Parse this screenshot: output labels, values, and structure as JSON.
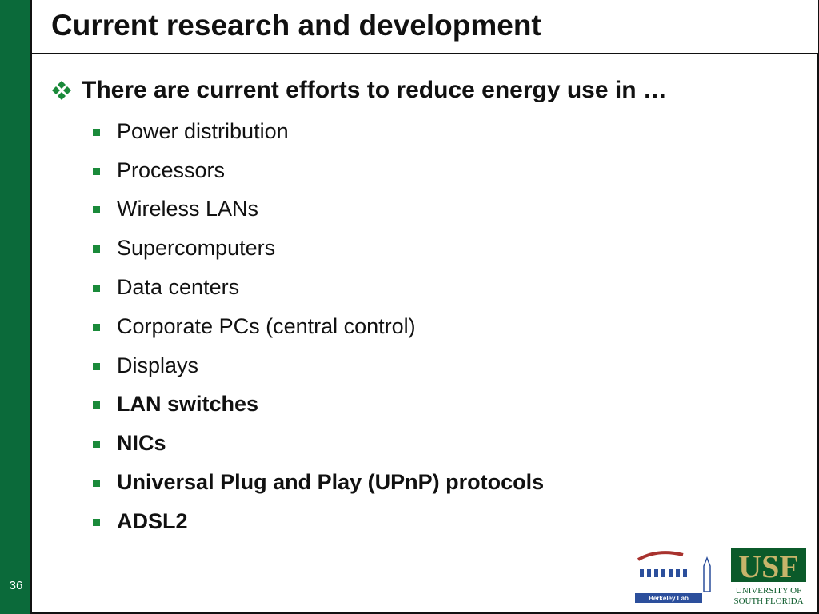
{
  "slide": {
    "title": "Current research and development",
    "number": "36"
  },
  "content": {
    "main_bullet": "There are current efforts to reduce energy use in …",
    "items": [
      {
        "text": "Power distribution",
        "bold": false
      },
      {
        "text": "Processors",
        "bold": false
      },
      {
        "text": "Wireless LANs",
        "bold": false
      },
      {
        "text": "Supercomputers",
        "bold": false
      },
      {
        "text": "Data centers",
        "bold": false
      },
      {
        "text": "Corporate PCs (central control)",
        "bold": false
      },
      {
        "text": "Displays",
        "bold": false
      },
      {
        "text": "LAN switches",
        "bold": true
      },
      {
        "text": "NICs",
        "bold": true
      },
      {
        "text": "Universal Plug and Play (UPnP) protocols",
        "bold": true
      },
      {
        "text": "ADSL2",
        "bold": true
      }
    ]
  },
  "logos": {
    "berkeley": "Berkeley Lab",
    "usf_mark": "USF",
    "usf_line1": "UNIVERSITY OF",
    "usf_line2": "SOUTH FLORIDA"
  },
  "colors": {
    "sidebar": "#0b6a3a",
    "bullet": "#1a8a3a",
    "usf_gold": "#c8b46a",
    "usf_green": "#0b5a2a",
    "berkeley_blue": "#2c4f9c"
  }
}
